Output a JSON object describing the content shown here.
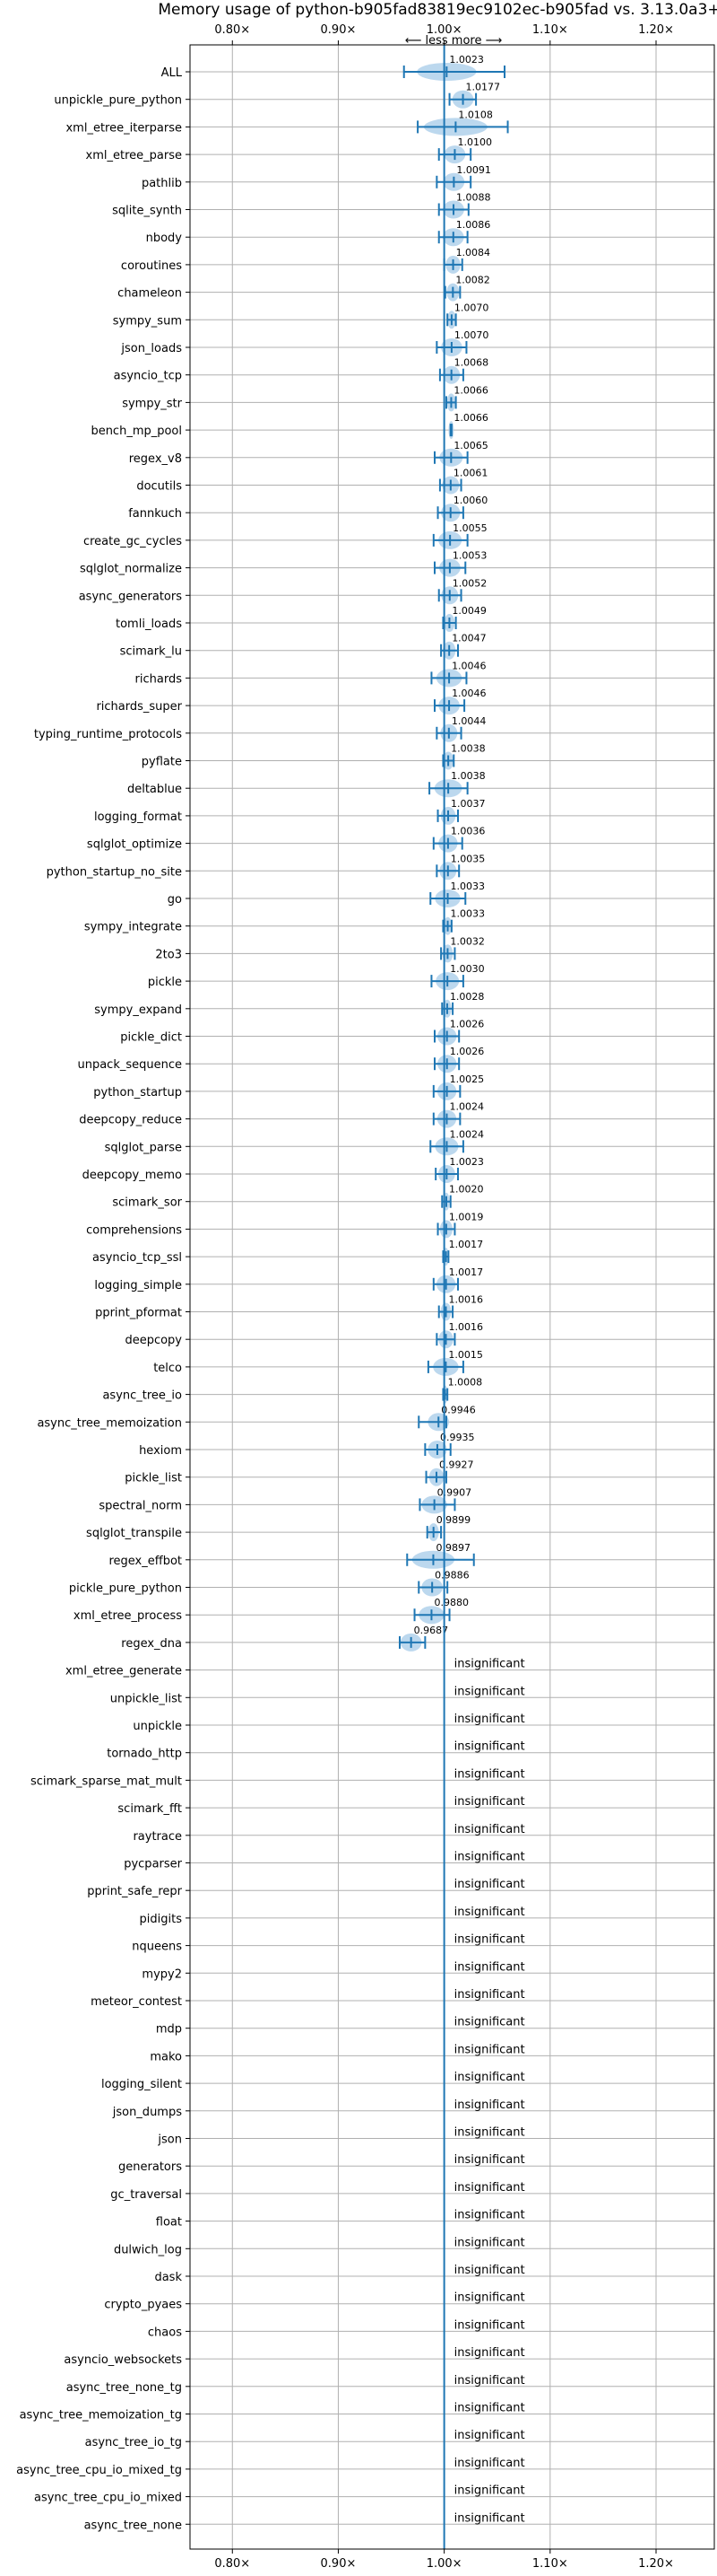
{
  "chart_data": {
    "type": "scatter",
    "title": "Memory usage of python-b905fad83819ec9102ec-b905fad vs. 3.13.0a3+",
    "direction_label": "⟵ less   more ⟶",
    "x_ticks": [
      "0.80×",
      "0.90×",
      "1.00×",
      "1.10×",
      "1.20×"
    ],
    "x_tick_values": [
      0.8,
      0.9,
      1.0,
      1.1,
      1.2
    ],
    "xlim": [
      0.76,
      1.255
    ],
    "grid": true,
    "reference_line": 1.0,
    "colors": {
      "accent": "#1f77b4",
      "violin": "#a6cbe8",
      "grid": "#b0b0b0",
      "text": "#000000"
    },
    "insignificant_label": "insignificant",
    "benchmarks": [
      {
        "name": "ALL",
        "value": 1.0023,
        "label": "1.0023",
        "err": [
          0.962,
          1.057
        ],
        "spread": 0.028
      },
      {
        "name": "unpickle_pure_python",
        "value": 1.0177,
        "label": "1.0177",
        "err": [
          1.005,
          1.03
        ],
        "spread": 0.01
      },
      {
        "name": "xml_etree_iterparse",
        "value": 1.0108,
        "label": "1.0108",
        "err": [
          0.975,
          1.06
        ],
        "spread": 0.03
      },
      {
        "name": "xml_etree_parse",
        "value": 1.01,
        "label": "1.0100",
        "err": [
          0.995,
          1.025
        ],
        "spread": 0.01
      },
      {
        "name": "pathlib",
        "value": 1.0091,
        "label": "1.0091",
        "err": [
          0.993,
          1.025
        ],
        "spread": 0.01
      },
      {
        "name": "sqlite_synth",
        "value": 1.0088,
        "label": "1.0088",
        "err": [
          0.995,
          1.023
        ],
        "spread": 0.01
      },
      {
        "name": "nbody",
        "value": 1.0086,
        "label": "1.0086",
        "err": [
          0.995,
          1.022
        ],
        "spread": 0.01
      },
      {
        "name": "coroutines",
        "value": 1.0084,
        "label": "1.0084",
        "err": [
          1.0,
          1.017
        ],
        "spread": 0.007
      },
      {
        "name": "chameleon",
        "value": 1.0082,
        "label": "1.0082",
        "err": [
          1.001,
          1.015
        ],
        "spread": 0.006
      },
      {
        "name": "sympy_sum",
        "value": 1.007,
        "label": "1.0070",
        "err": [
          1.003,
          1.011
        ],
        "spread": 0.004
      },
      {
        "name": "json_loads",
        "value": 1.007,
        "label": "1.0070",
        "err": [
          0.993,
          1.021
        ],
        "spread": 0.01
      },
      {
        "name": "asyncio_tcp",
        "value": 1.0068,
        "label": "1.0068",
        "err": [
          0.996,
          1.018
        ],
        "spread": 0.008
      },
      {
        "name": "sympy_str",
        "value": 1.0066,
        "label": "1.0066",
        "err": [
          1.002,
          1.011
        ],
        "spread": 0.004
      },
      {
        "name": "bench_mp_pool",
        "value": 1.0066,
        "label": "1.0066",
        "err": [
          1.006,
          1.007
        ],
        "spread": 0.001
      },
      {
        "name": "regex_v8",
        "value": 1.0065,
        "label": "1.0065",
        "err": [
          0.991,
          1.022
        ],
        "spread": 0.011
      },
      {
        "name": "docutils",
        "value": 1.0061,
        "label": "1.0061",
        "err": [
          0.996,
          1.016
        ],
        "spread": 0.008
      },
      {
        "name": "fannkuch",
        "value": 1.006,
        "label": "1.0060",
        "err": [
          0.994,
          1.018
        ],
        "spread": 0.009
      },
      {
        "name": "create_gc_cycles",
        "value": 1.0055,
        "label": "1.0055",
        "err": [
          0.99,
          1.022
        ],
        "spread": 0.011
      },
      {
        "name": "sqlglot_normalize",
        "value": 1.0053,
        "label": "1.0053",
        "err": [
          0.991,
          1.02
        ],
        "spread": 0.01
      },
      {
        "name": "async_generators",
        "value": 1.0052,
        "label": "1.0052",
        "err": [
          0.995,
          1.016
        ],
        "spread": 0.008
      },
      {
        "name": "tomli_loads",
        "value": 1.0049,
        "label": "1.0049",
        "err": [
          0.999,
          1.011
        ],
        "spread": 0.005
      },
      {
        "name": "scimark_lu",
        "value": 1.0047,
        "label": "1.0047",
        "err": [
          0.997,
          1.013
        ],
        "spread": 0.006
      },
      {
        "name": "richards",
        "value": 1.0046,
        "label": "1.0046",
        "err": [
          0.988,
          1.021
        ],
        "spread": 0.012
      },
      {
        "name": "richards_super",
        "value": 1.0046,
        "label": "1.0046",
        "err": [
          0.991,
          1.019
        ],
        "spread": 0.01
      },
      {
        "name": "typing_runtime_protocols",
        "value": 1.0044,
        "label": "1.0044",
        "err": [
          0.993,
          1.016
        ],
        "spread": 0.008
      },
      {
        "name": "pyflate",
        "value": 1.0038,
        "label": "1.0038",
        "err": [
          0.999,
          1.009
        ],
        "spread": 0.005
      },
      {
        "name": "deltablue",
        "value": 1.0038,
        "label": "1.0038",
        "err": [
          0.986,
          1.022
        ],
        "spread": 0.013
      },
      {
        "name": "logging_format",
        "value": 1.0037,
        "label": "1.0037",
        "err": [
          0.994,
          1.013
        ],
        "spread": 0.007
      },
      {
        "name": "sqlglot_optimize",
        "value": 1.0036,
        "label": "1.0036",
        "err": [
          0.99,
          1.017
        ],
        "spread": 0.009
      },
      {
        "name": "python_startup_no_site",
        "value": 1.0035,
        "label": "1.0035",
        "err": [
          0.993,
          1.014
        ],
        "spread": 0.008
      },
      {
        "name": "go",
        "value": 1.0033,
        "label": "1.0033",
        "err": [
          0.987,
          1.02
        ],
        "spread": 0.012
      },
      {
        "name": "sympy_integrate",
        "value": 1.0033,
        "label": "1.0033",
        "err": [
          0.999,
          1.007
        ],
        "spread": 0.004
      },
      {
        "name": "2to3",
        "value": 1.0032,
        "label": "1.0032",
        "err": [
          0.997,
          1.01
        ],
        "spread": 0.005
      },
      {
        "name": "pickle",
        "value": 1.003,
        "label": "1.0030",
        "err": [
          0.988,
          1.018
        ],
        "spread": 0.011
      },
      {
        "name": "sympy_expand",
        "value": 1.0028,
        "label": "1.0028",
        "err": [
          0.998,
          1.008
        ],
        "spread": 0.004
      },
      {
        "name": "pickle_dict",
        "value": 1.0026,
        "label": "1.0026",
        "err": [
          0.991,
          1.014
        ],
        "spread": 0.009
      },
      {
        "name": "unpack_sequence",
        "value": 1.0026,
        "label": "1.0026",
        "err": [
          0.991,
          1.014
        ],
        "spread": 0.009
      },
      {
        "name": "python_startup",
        "value": 1.0025,
        "label": "1.0025",
        "err": [
          0.99,
          1.015
        ],
        "spread": 0.009
      },
      {
        "name": "deepcopy_reduce",
        "value": 1.0024,
        "label": "1.0024",
        "err": [
          0.99,
          1.015
        ],
        "spread": 0.009
      },
      {
        "name": "sqlglot_parse",
        "value": 1.0024,
        "label": "1.0024",
        "err": [
          0.987,
          1.018
        ],
        "spread": 0.011
      },
      {
        "name": "deepcopy_memo",
        "value": 1.0023,
        "label": "1.0023",
        "err": [
          0.992,
          1.013
        ],
        "spread": 0.008
      },
      {
        "name": "scimark_sor",
        "value": 1.002,
        "label": "1.0020",
        "err": [
          0.998,
          1.006
        ],
        "spread": 0.003
      },
      {
        "name": "comprehensions",
        "value": 1.0019,
        "label": "1.0019",
        "err": [
          0.994,
          1.01
        ],
        "spread": 0.006
      },
      {
        "name": "asyncio_tcp_ssl",
        "value": 1.0017,
        "label": "1.0017",
        "err": [
          0.999,
          1.004
        ],
        "spread": 0.002
      },
      {
        "name": "logging_simple",
        "value": 1.0017,
        "label": "1.0017",
        "err": [
          0.99,
          1.013
        ],
        "spread": 0.009
      },
      {
        "name": "pprint_pformat",
        "value": 1.0016,
        "label": "1.0016",
        "err": [
          0.995,
          1.008
        ],
        "spread": 0.005
      },
      {
        "name": "deepcopy",
        "value": 1.0016,
        "label": "1.0016",
        "err": [
          0.993,
          1.01
        ],
        "spread": 0.007
      },
      {
        "name": "telco",
        "value": 1.0015,
        "label": "1.0015",
        "err": [
          0.985,
          1.018
        ],
        "spread": 0.012
      },
      {
        "name": "async_tree_io",
        "value": 1.0008,
        "label": "1.0008",
        "err": [
          0.999,
          1.003
        ],
        "spread": 0.002
      },
      {
        "name": "async_tree_memoization",
        "value": 0.9946,
        "label": "0.9946",
        "err": [
          0.976,
          1.002
        ],
        "spread": 0.01
      },
      {
        "name": "hexiom",
        "value": 0.9935,
        "label": "0.9935",
        "err": [
          0.982,
          1.006
        ],
        "spread": 0.009
      },
      {
        "name": "pickle_list",
        "value": 0.9927,
        "label": "0.9927",
        "err": [
          0.983,
          1.002
        ],
        "spread": 0.007
      },
      {
        "name": "spectral_norm",
        "value": 0.9907,
        "label": "0.9907",
        "err": [
          0.977,
          1.01
        ],
        "spread": 0.012
      },
      {
        "name": "sqlglot_transpile",
        "value": 0.9899,
        "label": "0.9899",
        "err": [
          0.984,
          0.997
        ],
        "spread": 0.005
      },
      {
        "name": "regex_effbot",
        "value": 0.9897,
        "label": "0.9897",
        "err": [
          0.965,
          1.028
        ],
        "spread": 0.02
      },
      {
        "name": "pickle_pure_python",
        "value": 0.9886,
        "label": "0.9886",
        "err": [
          0.976,
          1.003
        ],
        "spread": 0.01
      },
      {
        "name": "xml_etree_process",
        "value": 0.988,
        "label": "0.9880",
        "err": [
          0.972,
          1.005
        ],
        "spread": 0.012
      },
      {
        "name": "regex_dna",
        "value": 0.9687,
        "label": "0.9687",
        "err": [
          0.958,
          0.982
        ],
        "spread": 0.01
      },
      {
        "name": "xml_etree_generate",
        "insignificant": true
      },
      {
        "name": "unpickle_list",
        "insignificant": true
      },
      {
        "name": "unpickle",
        "insignificant": true
      },
      {
        "name": "tornado_http",
        "insignificant": true
      },
      {
        "name": "scimark_sparse_mat_mult",
        "insignificant": true
      },
      {
        "name": "scimark_fft",
        "insignificant": true
      },
      {
        "name": "raytrace",
        "insignificant": true
      },
      {
        "name": "pycparser",
        "insignificant": true
      },
      {
        "name": "pprint_safe_repr",
        "insignificant": true
      },
      {
        "name": "pidigits",
        "insignificant": true
      },
      {
        "name": "nqueens",
        "insignificant": true
      },
      {
        "name": "mypy2",
        "insignificant": true
      },
      {
        "name": "meteor_contest",
        "insignificant": true
      },
      {
        "name": "mdp",
        "insignificant": true
      },
      {
        "name": "mako",
        "insignificant": true
      },
      {
        "name": "logging_silent",
        "insignificant": true
      },
      {
        "name": "json_dumps",
        "insignificant": true
      },
      {
        "name": "json",
        "insignificant": true
      },
      {
        "name": "generators",
        "insignificant": true
      },
      {
        "name": "gc_traversal",
        "insignificant": true
      },
      {
        "name": "float",
        "insignificant": true
      },
      {
        "name": "dulwich_log",
        "insignificant": true
      },
      {
        "name": "dask",
        "insignificant": true
      },
      {
        "name": "crypto_pyaes",
        "insignificant": true
      },
      {
        "name": "chaos",
        "insignificant": true
      },
      {
        "name": "asyncio_websockets",
        "insignificant": true
      },
      {
        "name": "async_tree_none_tg",
        "insignificant": true
      },
      {
        "name": "async_tree_memoization_tg",
        "insignificant": true
      },
      {
        "name": "async_tree_io_tg",
        "insignificant": true
      },
      {
        "name": "async_tree_cpu_io_mixed_tg",
        "insignificant": true
      },
      {
        "name": "async_tree_cpu_io_mixed",
        "insignificant": true
      },
      {
        "name": "async_tree_none",
        "insignificant": true
      }
    ]
  }
}
